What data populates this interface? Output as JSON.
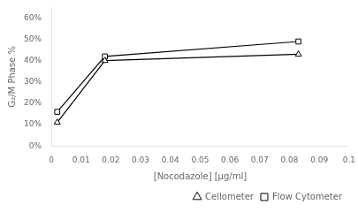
{
  "chart_data": {
    "type": "line",
    "x_label": "[Nocodazole] [µg/ml]",
    "y_label": "G₂/M Phase %",
    "series": [
      {
        "name": "Cellometer",
        "color": "#000000",
        "marker": "triangle",
        "line_style": "solid",
        "x": [
          0.002,
          0.018,
          0.083
        ],
        "values": [
          0.11,
          0.4,
          0.43
        ]
      },
      {
        "name": "Flow Cytometer",
        "color": "#000000",
        "marker": "square",
        "line_style": "solid",
        "x": [
          0.002,
          0.018,
          0.083
        ],
        "values": [
          0.16,
          0.42,
          0.49
        ]
      }
    ],
    "xlim": [
      0,
      0.1
    ],
    "ylim": [
      0,
      0.65
    ],
    "xticks": [
      0,
      0.01,
      0.02,
      0.03,
      0.04,
      0.05,
      0.06,
      0.07,
      0.08,
      0.09,
      0.1
    ],
    "yticks": [
      {
        "value": 0.0,
        "label": "0%"
      },
      {
        "value": 0.1,
        "label": "10%"
      },
      {
        "value": 0.2,
        "label": "20%"
      },
      {
        "value": 0.3,
        "label": "30%"
      },
      {
        "value": 0.4,
        "label": "40%"
      },
      {
        "value": 0.5,
        "label": "50%"
      },
      {
        "value": 0.6,
        "label": "60%"
      }
    ],
    "grid": false,
    "legend": "lower right"
  }
}
